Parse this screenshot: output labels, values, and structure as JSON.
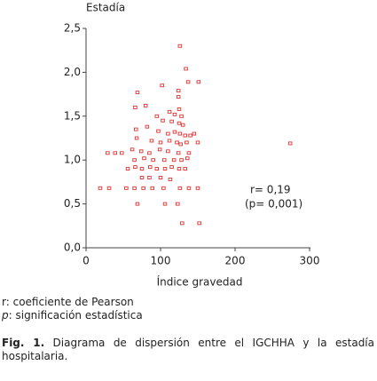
{
  "chart_data": {
    "type": "scatter",
    "y_label": "Estadía",
    "x_label": "Índice gravedad",
    "annotations": [
      "r= 0,19",
      "(p= 0,001)"
    ],
    "color": "#e03030",
    "xlim": [
      0,
      300
    ],
    "ylim": [
      0,
      2.5
    ],
    "xticks": [
      0,
      100,
      200,
      300
    ],
    "yticks": [
      {
        "value": 0,
        "label": "0,0"
      },
      {
        "value": 0.5,
        "label": "0,5"
      },
      {
        "value": 1,
        "label": "1,0"
      },
      {
        "value": 1.5,
        "label": "1,5"
      },
      {
        "value": 2,
        "label": "2,0"
      },
      {
        "value": 2.5,
        "label": "2,5"
      }
    ],
    "x": [
      126,
      134,
      151,
      137,
      69,
      102,
      124,
      124,
      66,
      80,
      112,
      125,
      128,
      119,
      95,
      103,
      115,
      125,
      130,
      67,
      82,
      97,
      110,
      119,
      126,
      133,
      140,
      145,
      68,
      88,
      100,
      112,
      122,
      127,
      135,
      150,
      274,
      62,
      74,
      85,
      99,
      110,
      124,
      138,
      29,
      39,
      48,
      65,
      78,
      90,
      105,
      118,
      128,
      136,
      56,
      66,
      75,
      86,
      95,
      106,
      115,
      125,
      133,
      75,
      85,
      100,
      113,
      19,
      31,
      54,
      65,
      77,
      89,
      104,
      126,
      138,
      150,
      69,
      106,
      123,
      129,
      152
    ],
    "values": [
      2.3,
      2.04,
      1.89,
      1.89,
      1.77,
      1.85,
      1.79,
      1.72,
      1.6,
      1.62,
      1.55,
      1.58,
      1.5,
      1.52,
      1.5,
      1.45,
      1.44,
      1.42,
      1.4,
      1.35,
      1.38,
      1.33,
      1.3,
      1.32,
      1.3,
      1.28,
      1.28,
      1.3,
      1.25,
      1.22,
      1.2,
      1.22,
      1.2,
      1.18,
      1.2,
      1.2,
      1.19,
      1.12,
      1.1,
      1.08,
      1.12,
      1.1,
      1.08,
      1.08,
      1.08,
      1.08,
      1.08,
      1.0,
      1.02,
      1.0,
      1.0,
      1.0,
      1.0,
      1.02,
      0.9,
      0.92,
      0.9,
      0.92,
      0.9,
      0.9,
      0.92,
      0.9,
      0.9,
      0.8,
      0.8,
      0.8,
      0.78,
      0.68,
      0.68,
      0.68,
      0.68,
      0.68,
      0.68,
      0.68,
      0.68,
      0.68,
      0.68,
      0.5,
      0.5,
      0.5,
      0.28,
      0.28
    ]
  },
  "notes": [
    {
      "symbol": "r",
      "text": ": coeficiente de Pearson"
    },
    {
      "symbol": "p",
      "text": ": significación estadística"
    }
  ],
  "caption": {
    "label": "Fig. 1.",
    "text": " Diagrama de dispersión entre el IGCHHA y la estadía hospitalaria."
  }
}
